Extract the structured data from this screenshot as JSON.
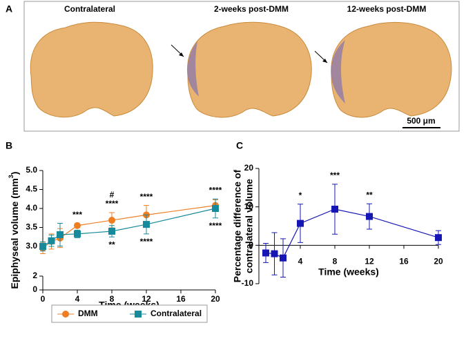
{
  "panel_a": {
    "label": "A",
    "titles": [
      "Contralateral",
      "2-weeks post-DMM",
      "12-weeks post-DMM"
    ],
    "scale_bar": "500 μm"
  },
  "chart_data": [
    {
      "type": "line",
      "label": "B",
      "ylabel": {
        "text": "Epiphyseal volume (mm",
        "sup": "3",
        "end": ")"
      },
      "xlabel": "Time (weeks)",
      "x": [
        0,
        1,
        2,
        4,
        8,
        12,
        20
      ],
      "series": [
        {
          "name": "DMM",
          "color": "#ef7d22",
          "marker": "circle",
          "values": [
            2.96,
            3.13,
            3.22,
            3.55,
            3.69,
            3.83,
            4.08
          ],
          "errors": [
            0.15,
            0.2,
            0.25,
            0.05,
            0.2,
            0.25,
            0.15
          ]
        },
        {
          "name": "Contralateral",
          "color": "#16899a",
          "marker": "square",
          "values": [
            3.0,
            3.15,
            3.31,
            3.33,
            3.4,
            3.58,
            4.0
          ],
          "errors": [
            0.12,
            0.15,
            0.3,
            0.1,
            0.15,
            0.25,
            0.25
          ]
        }
      ],
      "xlim": [
        0,
        20
      ],
      "xticks": [
        0,
        4,
        8,
        12,
        16,
        20
      ],
      "ylim": [
        0,
        5
      ],
      "yaxis_break": [
        2,
        2.8
      ],
      "yticks": [
        0,
        2,
        {
          "value": 3,
          "label": "3.0"
        },
        3.5,
        {
          "value": 4,
          "label": "4.0"
        },
        4.5,
        {
          "value": 5,
          "label": "5.0"
        }
      ],
      "annotations": [
        {
          "text": [
            "***"
          ],
          "x": 4,
          "position": "above"
        },
        {
          "text": [
            "#",
            "****"
          ],
          "x": 8,
          "position": "above"
        },
        {
          "text": [
            "****"
          ],
          "x": 12,
          "position": "above"
        },
        {
          "text": [
            "****"
          ],
          "x": 20,
          "position": "above"
        },
        {
          "text": [
            "**"
          ],
          "x": 8,
          "position": "below"
        },
        {
          "text": [
            "****"
          ],
          "x": 12,
          "position": "below"
        },
        {
          "text": [
            "****"
          ],
          "x": 20,
          "position": "below"
        }
      ],
      "legend": "bottom"
    },
    {
      "type": "line",
      "label": "C",
      "ylabel": [
        "Percentage difference of",
        "contralateral volume"
      ],
      "xlabel": "Time (weeks)",
      "x": [
        0,
        1,
        2,
        4,
        8,
        12,
        20
      ],
      "series": [
        {
          "color": "#1616b4",
          "marker": "square",
          "values": [
            -2.0,
            -2.2,
            -3.3,
            5.7,
            9.4,
            7.5,
            2.0
          ],
          "errors": [
            2.5,
            5.5,
            5.0,
            5.0,
            6.5,
            3.3,
            1.8
          ]
        }
      ],
      "xlim": [
        -0.8,
        20
      ],
      "xticks": [
        4,
        8,
        12,
        16,
        20
      ],
      "ylim": [
        -10,
        20
      ],
      "yticks": [
        -10,
        0,
        10,
        20
      ],
      "annotations": [
        {
          "text": [
            "*"
          ],
          "x": 4,
          "position": "above"
        },
        {
          "text": [
            "***"
          ],
          "x": 8,
          "position": "above"
        },
        {
          "text": [
            "**"
          ],
          "x": 12,
          "position": "above"
        }
      ]
    }
  ]
}
